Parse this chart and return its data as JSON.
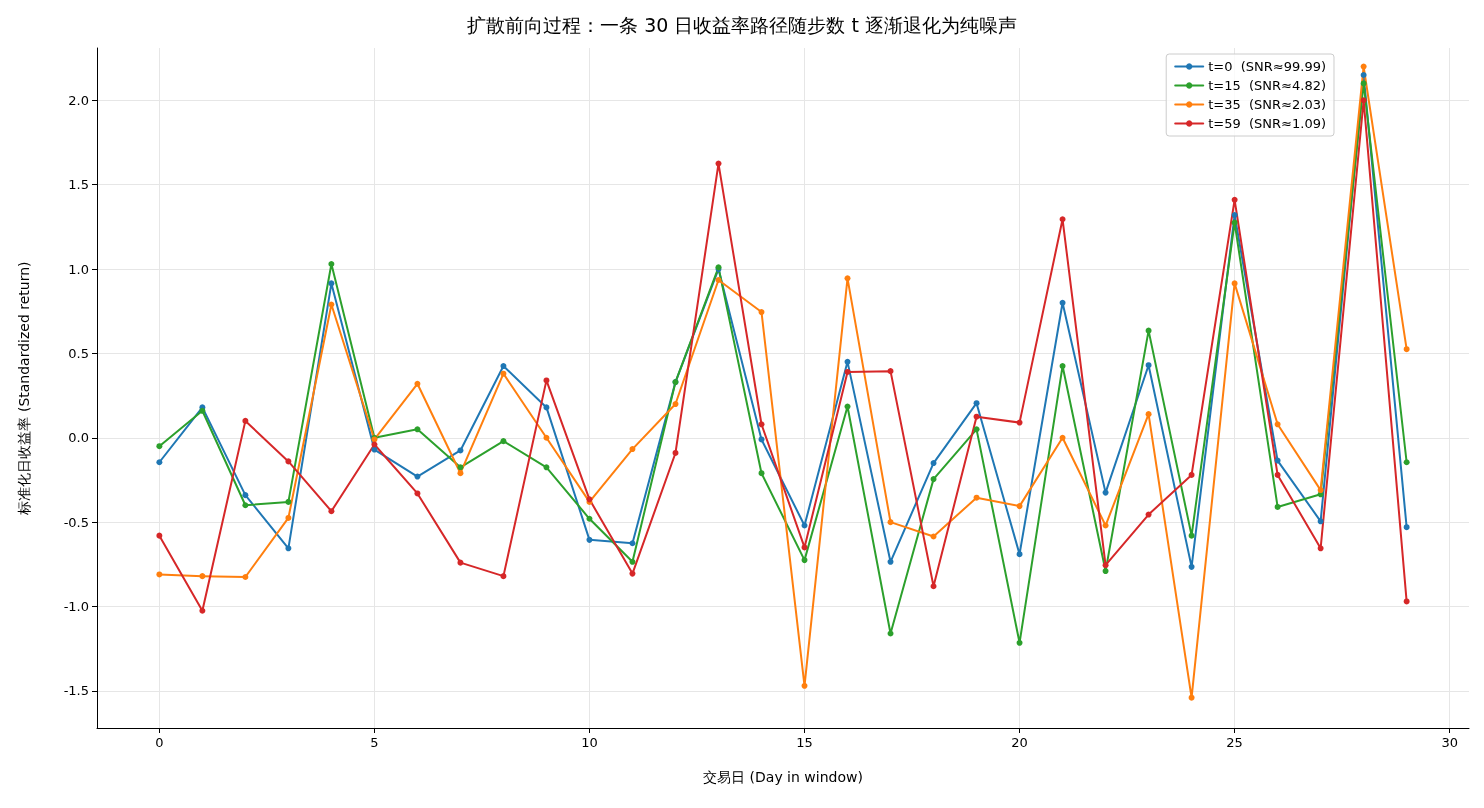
{
  "chart_data": {
    "type": "line",
    "title": "扩散前向过程：一条 30 日收益率路径随步数 t 逐渐退化为纯噪声",
    "xlabel": "交易日 (Day in window)",
    "ylabel": "标准化日收益率 (Standardized return)",
    "x": [
      0,
      1,
      2,
      3,
      4,
      5,
      6,
      7,
      8,
      9,
      10,
      11,
      12,
      13,
      14,
      15,
      16,
      17,
      18,
      19,
      20,
      21,
      22,
      23,
      24,
      25,
      26,
      27,
      28,
      29
    ],
    "series": [
      {
        "name": "t=0  (SNR≈99.99)",
        "color": "#1f77b4",
        "values": [
          -0.145,
          0.18,
          -0.34,
          -0.655,
          0.915,
          -0.07,
          -0.23,
          -0.075,
          0.425,
          0.18,
          -0.605,
          -0.625,
          0.33,
          1.0,
          -0.01,
          -0.52,
          0.45,
          -0.735,
          -0.15,
          0.205,
          -0.69,
          0.8,
          -0.325,
          0.43,
          -0.765,
          1.32,
          -0.135,
          -0.495,
          2.15,
          -0.53
        ]
      },
      {
        "name": "t=15  (SNR≈4.82)",
        "color": "#2ca02c",
        "values": [
          -0.05,
          0.16,
          -0.4,
          -0.38,
          1.03,
          0.0,
          0.05,
          -0.175,
          -0.02,
          -0.175,
          -0.48,
          -0.735,
          0.33,
          1.01,
          -0.21,
          -0.725,
          0.185,
          -1.16,
          -0.245,
          0.05,
          -1.215,
          0.425,
          -0.79,
          0.635,
          -0.58,
          1.275,
          -0.41,
          -0.335,
          2.1,
          -0.145
        ]
      },
      {
        "name": "t=35  (SNR≈2.03)",
        "color": "#ff7f0e",
        "values": [
          -0.81,
          -0.82,
          -0.825,
          -0.475,
          0.79,
          -0.01,
          0.32,
          -0.21,
          0.38,
          0.0,
          -0.38,
          -0.067,
          0.2,
          0.935,
          0.745,
          -1.47,
          0.945,
          -0.5,
          -0.585,
          -0.355,
          -0.405,
          0.0,
          -0.52,
          0.14,
          -1.54,
          0.915,
          0.08,
          -0.31,
          2.2,
          0.525
        ]
      },
      {
        "name": "t=59  (SNR≈1.09)",
        "color": "#d62728",
        "values": [
          -0.58,
          -1.025,
          0.1,
          -0.14,
          -0.435,
          -0.04,
          -0.33,
          -0.74,
          -0.82,
          0.34,
          -0.365,
          -0.805,
          -0.09,
          1.625,
          0.08,
          -0.65,
          0.39,
          0.395,
          -0.88,
          0.125,
          0.09,
          1.295,
          -0.755,
          -0.455,
          -0.22,
          1.41,
          -0.22,
          -0.655,
          2.0,
          -0.97
        ]
      }
    ],
    "xlim": [
      -1.45,
      30.45
    ],
    "xticks": [
      0,
      5,
      10,
      15,
      20,
      25,
      30
    ],
    "ylim": [
      -1.72,
      2.31
    ],
    "yticks": [
      -1.5,
      {
        "value": -1,
        "label": "-1.0"
      },
      -0.5,
      {
        "value": 0,
        "label": "0.0"
      },
      0.5,
      {
        "value": 1,
        "label": "1.0"
      },
      1.5,
      {
        "value": 2,
        "label": "2.0"
      }
    ],
    "grid": true,
    "legend": "top right",
    "marker": "circle",
    "line_style": "solid"
  }
}
